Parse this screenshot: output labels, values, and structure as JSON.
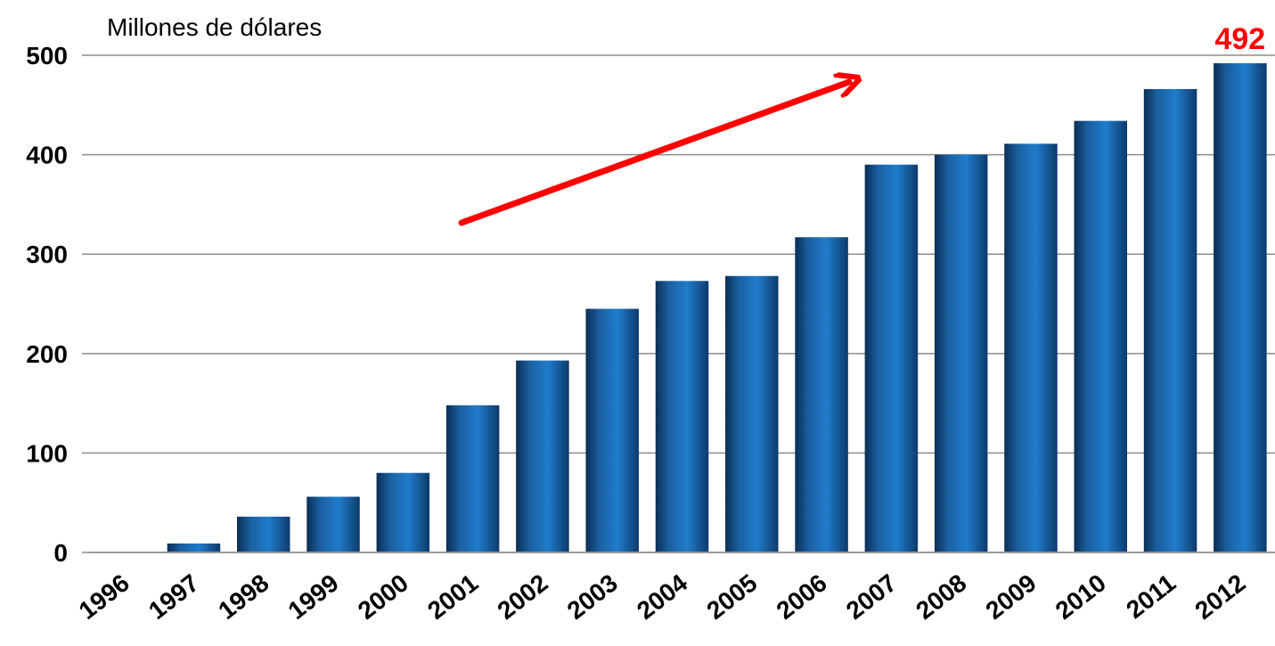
{
  "chart_data": {
    "type": "bar",
    "ylabel": "Millones de dólares",
    "categories": [
      "1996",
      "1997",
      "1998",
      "1999",
      "2000",
      "2001",
      "2002",
      "2003",
      "2004",
      "2005",
      "2006",
      "2007",
      "2008",
      "2009",
      "2010",
      "2011",
      "2012"
    ],
    "values": [
      0,
      9,
      36,
      56,
      80,
      148,
      193,
      245,
      273,
      278,
      317,
      390,
      400,
      411,
      434,
      466,
      492
    ],
    "y_ticks": [
      0,
      100,
      200,
      300,
      400,
      500
    ],
    "ylim": [
      0,
      500
    ],
    "grid": true,
    "annotations": {
      "value_label": "492",
      "value_label_color": "#ff0000",
      "trend_arrow": true,
      "trend_arrow_color": "#ff0000"
    },
    "bar_color": "#1a6fb5"
  }
}
